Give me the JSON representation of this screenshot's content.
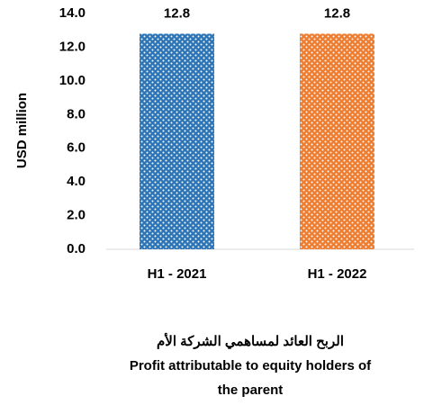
{
  "chart_data": {
    "type": "bar",
    "title": "Profit attributable to equity holders of the parent",
    "subtitle": "الربح العائد لمساهمي الشركة الأم",
    "y_label": "USD million",
    "categories": [
      "H1 - 2021",
      "H1 - 2022"
    ],
    "values": [
      12.8,
      12.8
    ],
    "colors": [
      "#2e75b6",
      "#ed7d31"
    ],
    "ylim": [
      0,
      14
    ],
    "yticks": [
      {
        "value": 0,
        "label": "0.0"
      },
      {
        "value": 2,
        "label": "2.0"
      },
      {
        "value": 4,
        "label": "4.0"
      },
      {
        "value": 6,
        "label": "6.0"
      },
      {
        "value": 8,
        "label": "8.0"
      },
      {
        "value": 10,
        "label": "10.0"
      },
      {
        "value": 12,
        "label": "12.0"
      },
      {
        "value": 14,
        "label": "14.0"
      }
    ],
    "grid": false
  }
}
